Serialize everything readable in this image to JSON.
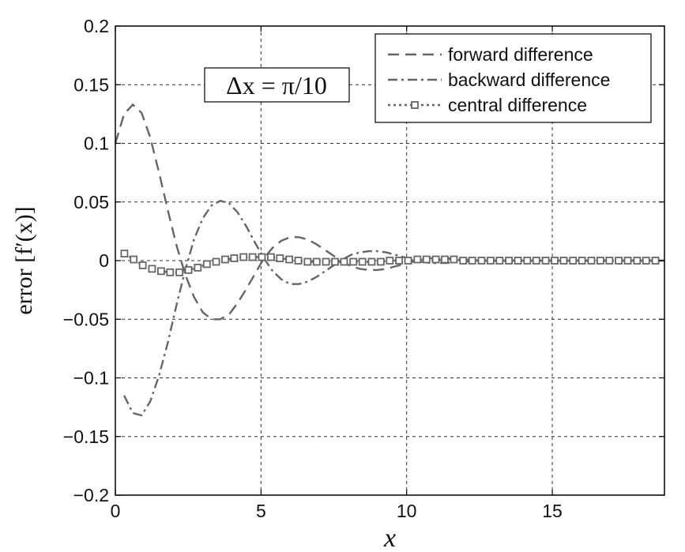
{
  "chart_data": {
    "type": "line",
    "xlabel": "x",
    "ylabel": "error [f′(x)]",
    "xlim": [
      0,
      18.85
    ],
    "ylim": [
      -0.2,
      0.2
    ],
    "xticks": [
      0,
      5,
      10,
      15
    ],
    "xtick_labels": [
      "0",
      "5",
      "10",
      "15"
    ],
    "yticks": [
      -0.2,
      -0.15,
      -0.1,
      -0.05,
      0,
      0.05,
      0.1,
      0.15,
      0.2
    ],
    "ytick_labels": [
      "−0.2",
      "−0.15",
      "−0.1",
      "−0.05",
      "0",
      "0.05",
      "0.1",
      "0.15",
      "0.2"
    ],
    "grid": true,
    "legend_position": "top-right",
    "annotation": "Δx = π/10",
    "line_color": "#666666",
    "series": [
      {
        "name": "forward difference",
        "style": "dashed",
        "x": [
          0,
          0.3,
          0.6,
          0.9,
          1.2,
          1.5,
          1.8,
          2.1,
          2.4,
          2.7,
          3.0,
          3.3,
          3.6,
          3.9,
          4.2,
          4.5,
          4.8,
          5.1,
          5.4,
          5.7,
          6.0,
          6.3,
          6.6,
          6.9,
          7.2,
          7.5,
          7.8,
          8.1,
          8.4,
          8.7,
          9.0,
          9.3,
          9.6,
          9.9,
          10.2,
          10.5,
          10.8,
          11.1,
          11.4,
          11.7,
          12.0,
          12.5,
          13,
          14,
          15,
          16,
          17,
          18,
          18.85
        ],
        "y": [
          0.1,
          0.125,
          0.133,
          0.126,
          0.105,
          0.075,
          0.043,
          0.013,
          -0.012,
          -0.031,
          -0.044,
          -0.05,
          -0.05,
          -0.046,
          -0.036,
          -0.024,
          -0.011,
          0.002,
          0.011,
          0.017,
          0.02,
          0.02,
          0.018,
          0.014,
          0.009,
          0.004,
          -0.001,
          -0.005,
          -0.007,
          -0.008,
          -0.008,
          -0.007,
          -0.005,
          -0.003,
          -0.001,
          0.001,
          0.002,
          0.002,
          0.002,
          0.001,
          0.001,
          0,
          0,
          0,
          0,
          0,
          0,
          0,
          0
        ]
      },
      {
        "name": "backward difference",
        "style": "dashdot",
        "x": [
          0.3,
          0.6,
          0.9,
          1.2,
          1.5,
          1.8,
          2.1,
          2.4,
          2.7,
          3.0,
          3.3,
          3.6,
          3.9,
          4.2,
          4.5,
          4.8,
          5.1,
          5.4,
          5.7,
          6.0,
          6.3,
          6.6,
          6.9,
          7.2,
          7.5,
          7.8,
          8.1,
          8.4,
          8.7,
          9.0,
          9.3,
          9.6,
          9.9,
          10.2,
          10.5,
          10.8,
          11.1,
          11.4,
          11.7,
          12.0,
          12.5,
          13,
          14,
          15,
          16,
          17,
          18,
          18.85
        ],
        "y": [
          -0.115,
          -0.13,
          -0.132,
          -0.12,
          -0.098,
          -0.07,
          -0.038,
          -0.008,
          0.018,
          0.036,
          0.047,
          0.051,
          0.049,
          0.041,
          0.029,
          0.015,
          0.002,
          -0.009,
          -0.016,
          -0.02,
          -0.02,
          -0.018,
          -0.014,
          -0.009,
          -0.004,
          0.001,
          0.005,
          0.007,
          0.008,
          0.008,
          0.007,
          0.005,
          0.003,
          0.001,
          -0.001,
          -0.002,
          -0.002,
          -0.002,
          -0.001,
          -0.001,
          0,
          0,
          0,
          0,
          0,
          0,
          0,
          0
        ]
      },
      {
        "name": "central difference",
        "style": "dotted-square",
        "x": [
          0.31,
          0.63,
          0.94,
          1.26,
          1.57,
          1.88,
          2.2,
          2.51,
          2.83,
          3.14,
          3.46,
          3.77,
          4.08,
          4.4,
          4.71,
          5.03,
          5.34,
          5.65,
          5.97,
          6.28,
          6.6,
          6.91,
          7.23,
          7.54,
          7.85,
          8.17,
          8.48,
          8.8,
          9.11,
          9.42,
          9.74,
          10.05,
          10.37,
          10.68,
          11.0,
          11.31,
          11.62,
          11.94,
          12.25,
          12.57,
          12.88,
          13.19,
          13.51,
          13.82,
          14.14,
          14.45,
          14.77,
          15.08,
          15.39,
          15.71,
          16.02,
          16.34,
          16.65,
          16.96,
          17.28,
          17.59,
          17.91,
          18.22,
          18.54
        ],
        "y": [
          0.006,
          0.001,
          -0.004,
          -0.007,
          -0.009,
          -0.01,
          -0.01,
          -0.008,
          -0.006,
          -0.003,
          -0.001,
          0.001,
          0.002,
          0.003,
          0.003,
          0.003,
          0.003,
          0.002,
          0.001,
          0,
          -0.001,
          -0.001,
          -0.001,
          -0.001,
          -0.001,
          -0.001,
          -0.001,
          -0.001,
          -0.001,
          0,
          0,
          0,
          0.001,
          0.001,
          0.001,
          0.001,
          0.001,
          0,
          0,
          0,
          0,
          0,
          0,
          0,
          0,
          0,
          0,
          0,
          0,
          0,
          0,
          0,
          0,
          0,
          0,
          0,
          0,
          0,
          0
        ]
      }
    ]
  }
}
